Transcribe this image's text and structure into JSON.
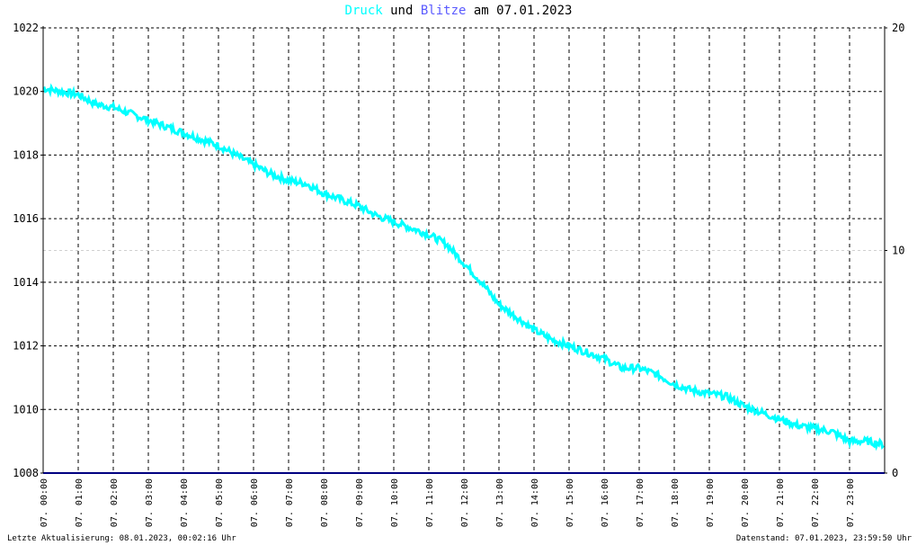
{
  "title": {
    "druck": "Druck",
    "und": "und",
    "blitze": "Blitze",
    "am": "am",
    "date": "07.01.2023"
  },
  "colors": {
    "druck": "#00ffff",
    "blitze": "#5a5aff",
    "axis": "#000000",
    "baseline": "#000080"
  },
  "footer": {
    "left": "Letzte Aktualisierung: 08.01.2023, 00:02:16 Uhr",
    "right": "Datenstand: 07.01.2023, 23:59:50 Uhr"
  },
  "chart_data": {
    "type": "line",
    "title": "Druck und Blitze am 07.01.2023",
    "y_left": {
      "min": 1008,
      "max": 1022,
      "ticks": [
        "1008",
        "1010",
        "1012",
        "1014",
        "1016",
        "1018",
        "1020",
        "1022"
      ]
    },
    "y_right": {
      "min": 0,
      "max": 20,
      "ticks": [
        "0",
        "10",
        "20"
      ]
    },
    "x_range": [
      "00:00",
      "24:00"
    ],
    "x_ticks": [
      "07. 00:00",
      "07. 01:00",
      "07. 02:00",
      "07. 03:00",
      "07. 04:00",
      "07. 05:00",
      "07. 06:00",
      "07. 07:00",
      "07. 08:00",
      "07. 09:00",
      "07. 10:00",
      "07. 11:00",
      "07. 12:00",
      "07. 13:00",
      "07. 14:00",
      "07. 15:00",
      "07. 16:00",
      "07. 17:00",
      "07. 18:00",
      "07. 19:00",
      "07. 20:00",
      "07. 21:00",
      "07. 22:00",
      "07. 23:00"
    ],
    "grid": true,
    "series": [
      {
        "name": "Druck",
        "axis": "left",
        "x": [
          "00:00",
          "00:30",
          "01:00",
          "01:30",
          "02:00",
          "02:30",
          "03:00",
          "03:30",
          "04:00",
          "04:30",
          "05:00",
          "05:30",
          "06:00",
          "06:30",
          "07:00",
          "07:30",
          "08:00",
          "08:30",
          "09:00",
          "09:30",
          "10:00",
          "10:30",
          "11:00",
          "11:30",
          "12:00",
          "12:30",
          "13:00",
          "13:30",
          "14:00",
          "14:30",
          "15:00",
          "15:30",
          "16:00",
          "16:30",
          "17:00",
          "17:30",
          "18:00",
          "18:30",
          "19:00",
          "19:30",
          "20:00",
          "20:30",
          "21:00",
          "21:30",
          "22:00",
          "22:30",
          "23:00",
          "23:30",
          "23:59"
        ],
        "values": [
          1020.1,
          1020.0,
          1019.9,
          1019.6,
          1019.5,
          1019.3,
          1019.1,
          1018.9,
          1018.7,
          1018.5,
          1018.3,
          1018.0,
          1017.7,
          1017.4,
          1017.2,
          1017.1,
          1016.8,
          1016.6,
          1016.4,
          1016.1,
          1015.9,
          1015.7,
          1015.5,
          1015.2,
          1014.6,
          1014.0,
          1013.3,
          1012.9,
          1012.5,
          1012.2,
          1012.0,
          1011.8,
          1011.6,
          1011.3,
          1011.3,
          1011.1,
          1010.8,
          1010.6,
          1010.5,
          1010.4,
          1010.1,
          1009.9,
          1009.7,
          1009.5,
          1009.4,
          1009.3,
          1009.0,
          1009.0,
          1008.9
        ]
      },
      {
        "name": "Blitze",
        "axis": "right",
        "x": [
          "00:00",
          "23:59"
        ],
        "values": [
          0,
          0
        ]
      }
    ]
  }
}
